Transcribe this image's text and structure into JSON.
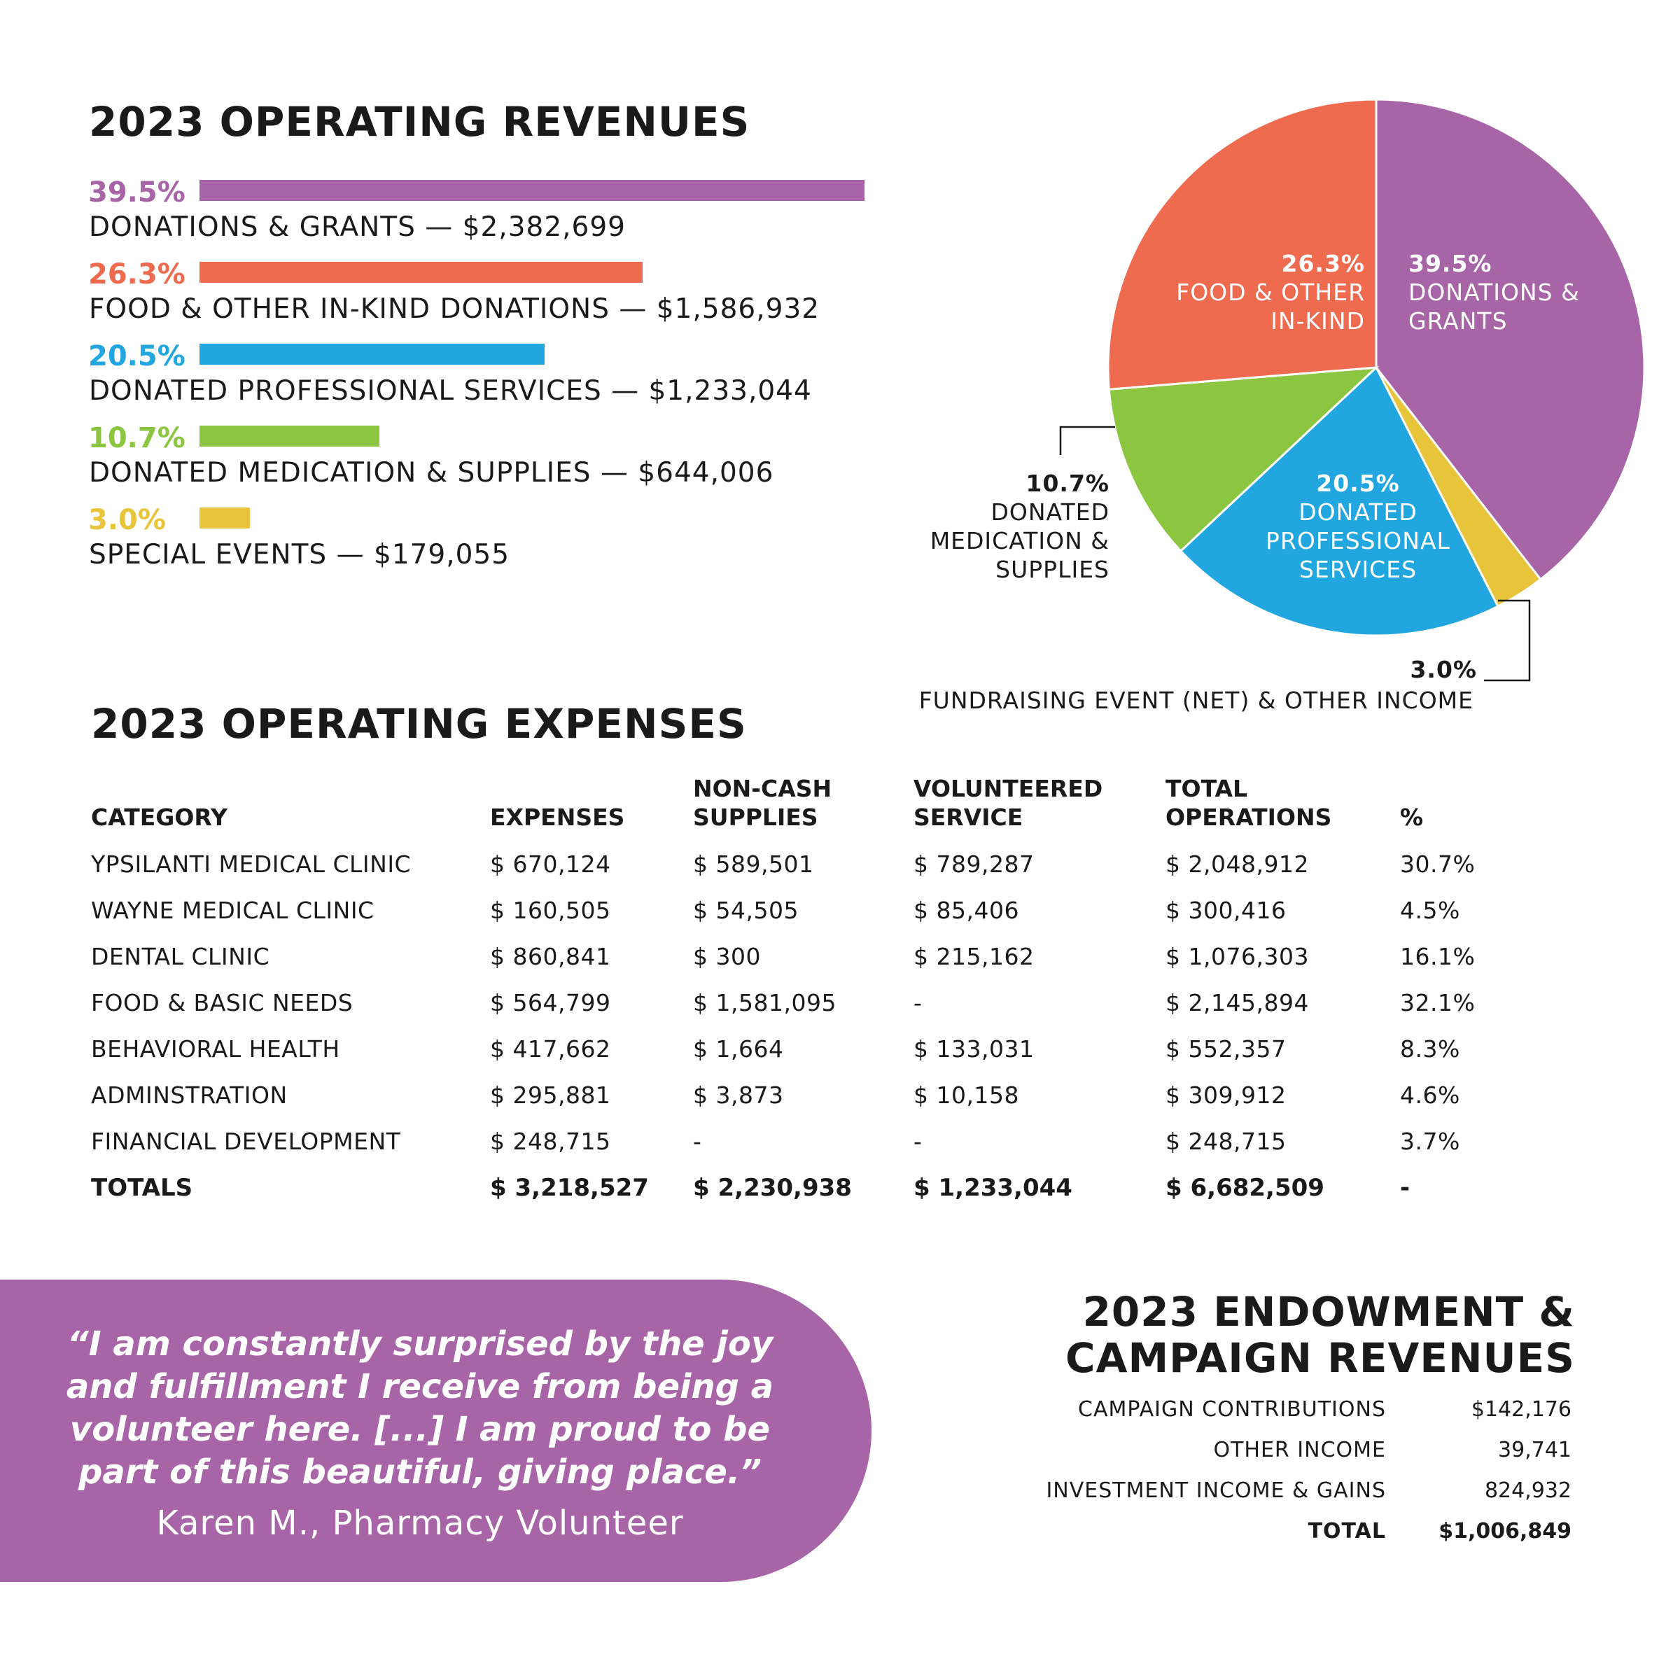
{
  "revenues": {
    "title": "2023 OPERATING REVENUES",
    "items": [
      {
        "pct": "39.5%",
        "label": "DONATIONS & GRANTS —  $2,382,699",
        "value": 39.5,
        "color": "#a764a6"
      },
      {
        "pct": "26.3%",
        "label": "FOOD & OTHER IN-KIND DONATIONS —  $1,586,932",
        "value": 26.3,
        "color": "#ef6b50"
      },
      {
        "pct": "20.5%",
        "label": "DONATED PROFESSIONAL SERVICES —  $1,233,044",
        "value": 20.5,
        "color": "#21a6df"
      },
      {
        "pct": "10.7%",
        "label": "DONATED MEDICATION & SUPPLIES —  $644,006",
        "value": 10.7,
        "color": "#8cc640"
      },
      {
        "pct": "3.0%",
        "label": "SPECIAL EVENTS — $179,055",
        "value": 3.0,
        "color": "#e8c43a"
      }
    ]
  },
  "chart_data": {
    "type": "pie",
    "title": "2023 OPERATING REVENUES",
    "slices": [
      {
        "pct": "39.5%",
        "lines": [
          "DONATIONS &",
          "GRANTS"
        ],
        "value": 39.5,
        "color": "#a764a6"
      },
      {
        "pct": "3.0%",
        "lines": [
          "FUNDRAISING EVENT (NET) & OTHER INCOME"
        ],
        "value": 3.0,
        "color": "#e8c43a"
      },
      {
        "pct": "20.5%",
        "lines": [
          "DONATED",
          "PROFESSIONAL",
          "SERVICES"
        ],
        "value": 20.5,
        "color": "#21a6df"
      },
      {
        "pct": "10.7%",
        "lines": [
          "DONATED",
          "MEDICATION &",
          "SUPPLIES"
        ],
        "value": 10.7,
        "color": "#8cc640"
      },
      {
        "pct": "26.3%",
        "lines": [
          "FOOD & OTHER",
          "IN-KIND"
        ],
        "value": 26.3,
        "color": "#ef6b50"
      }
    ]
  },
  "expenses": {
    "title": "2023 OPERATING EXPENSES",
    "headers": [
      {
        "l1": "",
        "l2": "CATEGORY"
      },
      {
        "l1": "",
        "l2": "EXPENSES"
      },
      {
        "l1": "NON-CASH",
        "l2": "SUPPLIES"
      },
      {
        "l1": "VOLUNTEERED",
        "l2": "SERVICE"
      },
      {
        "l1": "TOTAL",
        "l2": "OPERATIONS"
      },
      {
        "l1": "",
        "l2": "%"
      }
    ],
    "rows": [
      [
        "YPSILANTI MEDICAL CLINIC",
        " $ 670,124",
        "$ 589,501",
        "$ 789,287",
        "$ 2,048,912",
        "30.7%"
      ],
      [
        "WAYNE MEDICAL CLINIC",
        "$ 160,505",
        "$ 54,505",
        "$ 85,406",
        "$ 300,416",
        "4.5%"
      ],
      [
        "DENTAL CLINIC",
        "$ 860,841",
        "$ 300",
        "$ 215,162",
        "$ 1,076,303",
        "16.1%"
      ],
      [
        "FOOD & BASIC NEEDS",
        "$ 564,799",
        "$ 1,581,095",
        "-",
        "$ 2,145,894",
        "32.1%"
      ],
      [
        "BEHAVIORAL HEALTH",
        "$ 417,662",
        "$ 1,664",
        "$ 133,031",
        "$ 552,357",
        "8.3%"
      ],
      [
        "ADMINSTRATION",
        "$ 295,881",
        "$ 3,873",
        "$ 10,158",
        "$ 309,912",
        "4.6%"
      ],
      [
        "FINANCIAL DEVELOPMENT",
        "$ 248,715",
        "-",
        "-",
        "$ 248,715",
        "3.7%"
      ]
    ],
    "totals": [
      "TOTALS",
      "$ 3,218,527",
      "$ 2,230,938",
      "$ 1,233,044",
      "$ 6,682,509",
      "-"
    ]
  },
  "quote": {
    "text": "“I am constantly surprised by the joy and fulfillment I receive from being a volunteer here. [...] I am proud to be part of this beautiful, giving place.”",
    "attribution": "Karen M., Pharmacy Volunteer"
  },
  "endowment": {
    "title_line1": "2023 ENDOWMENT &",
    "title_line2": "CAMPAIGN REVENUES",
    "rows": [
      {
        "label": "CAMPAIGN CONTRIBUTIONS",
        "value": "$142,176"
      },
      {
        "label": "OTHER INCOME",
        "value": "39,741"
      },
      {
        "label": "INVESTMENT INCOME & GAINS",
        "value": "824,932"
      }
    ],
    "total": {
      "label": "TOTAL",
      "value": "$1,006,849"
    }
  }
}
